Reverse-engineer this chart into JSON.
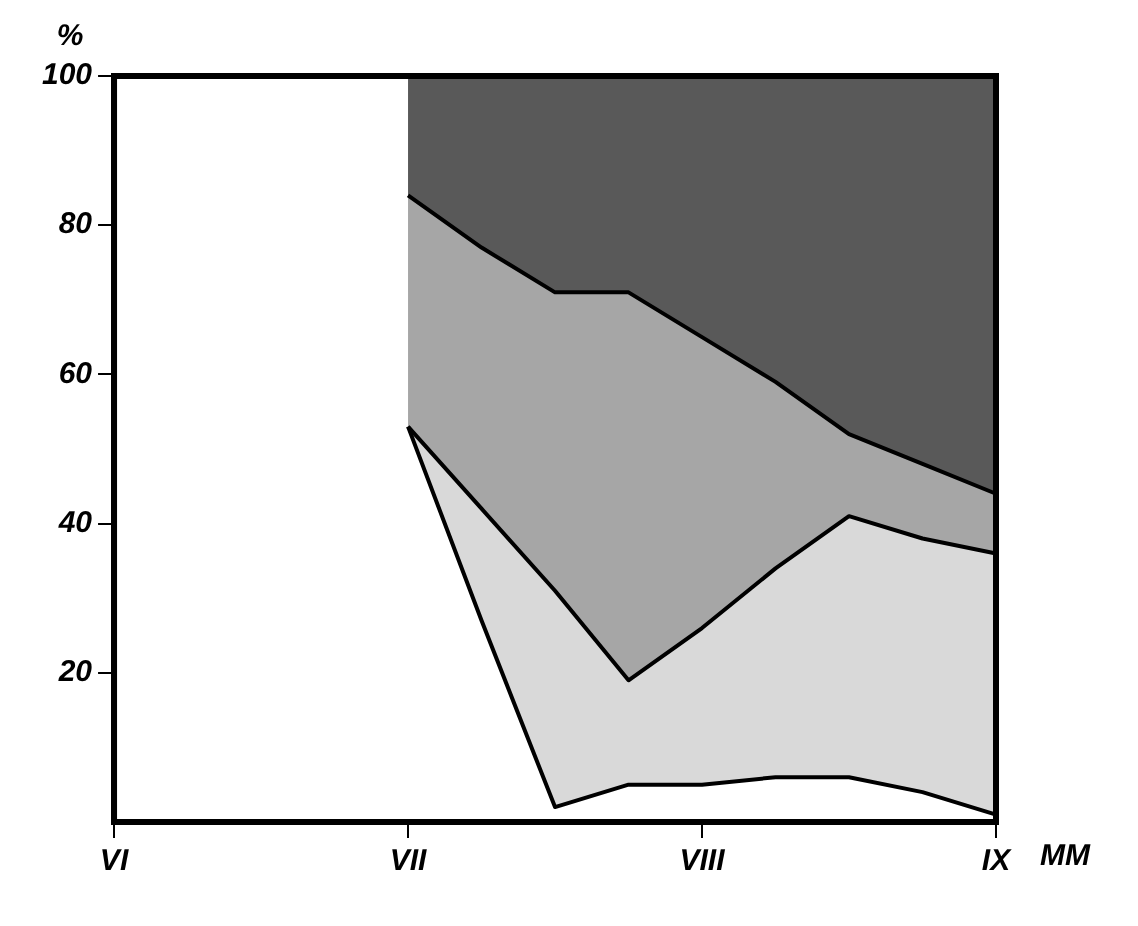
{
  "chart_data": {
    "type": "area",
    "stacked": true,
    "ylabel": "%",
    "xlabel": "MM",
    "categories": [
      "VI",
      null,
      null,
      null,
      "VII",
      null,
      null,
      null,
      "VIII",
      null,
      null,
      null,
      "IX"
    ],
    "series": [
      {
        "color": "#ffffff",
        "values": [
          null,
          null,
          null,
          null,
          53,
          27,
          2,
          5,
          5,
          6,
          6,
          4,
          1
        ]
      },
      {
        "color": "#d9d9d9",
        "values": [
          null,
          null,
          null,
          null,
          0,
          15,
          29,
          14,
          21,
          28,
          35,
          34,
          35
        ]
      },
      {
        "color": "#a6a6a6",
        "values": [
          null,
          null,
          null,
          null,
          31,
          35,
          40,
          52,
          39,
          25,
          11,
          10,
          8
        ]
      },
      {
        "color": "#595959",
        "values": [
          null,
          null,
          null,
          null,
          16,
          23,
          29,
          29,
          35,
          41,
          48,
          52,
          56
        ]
      }
    ],
    "ylim": [
      0,
      100
    ],
    "yticks": [
      20,
      40,
      60,
      80,
      100
    ],
    "grid": false,
    "legend": false,
    "marker": "none"
  }
}
